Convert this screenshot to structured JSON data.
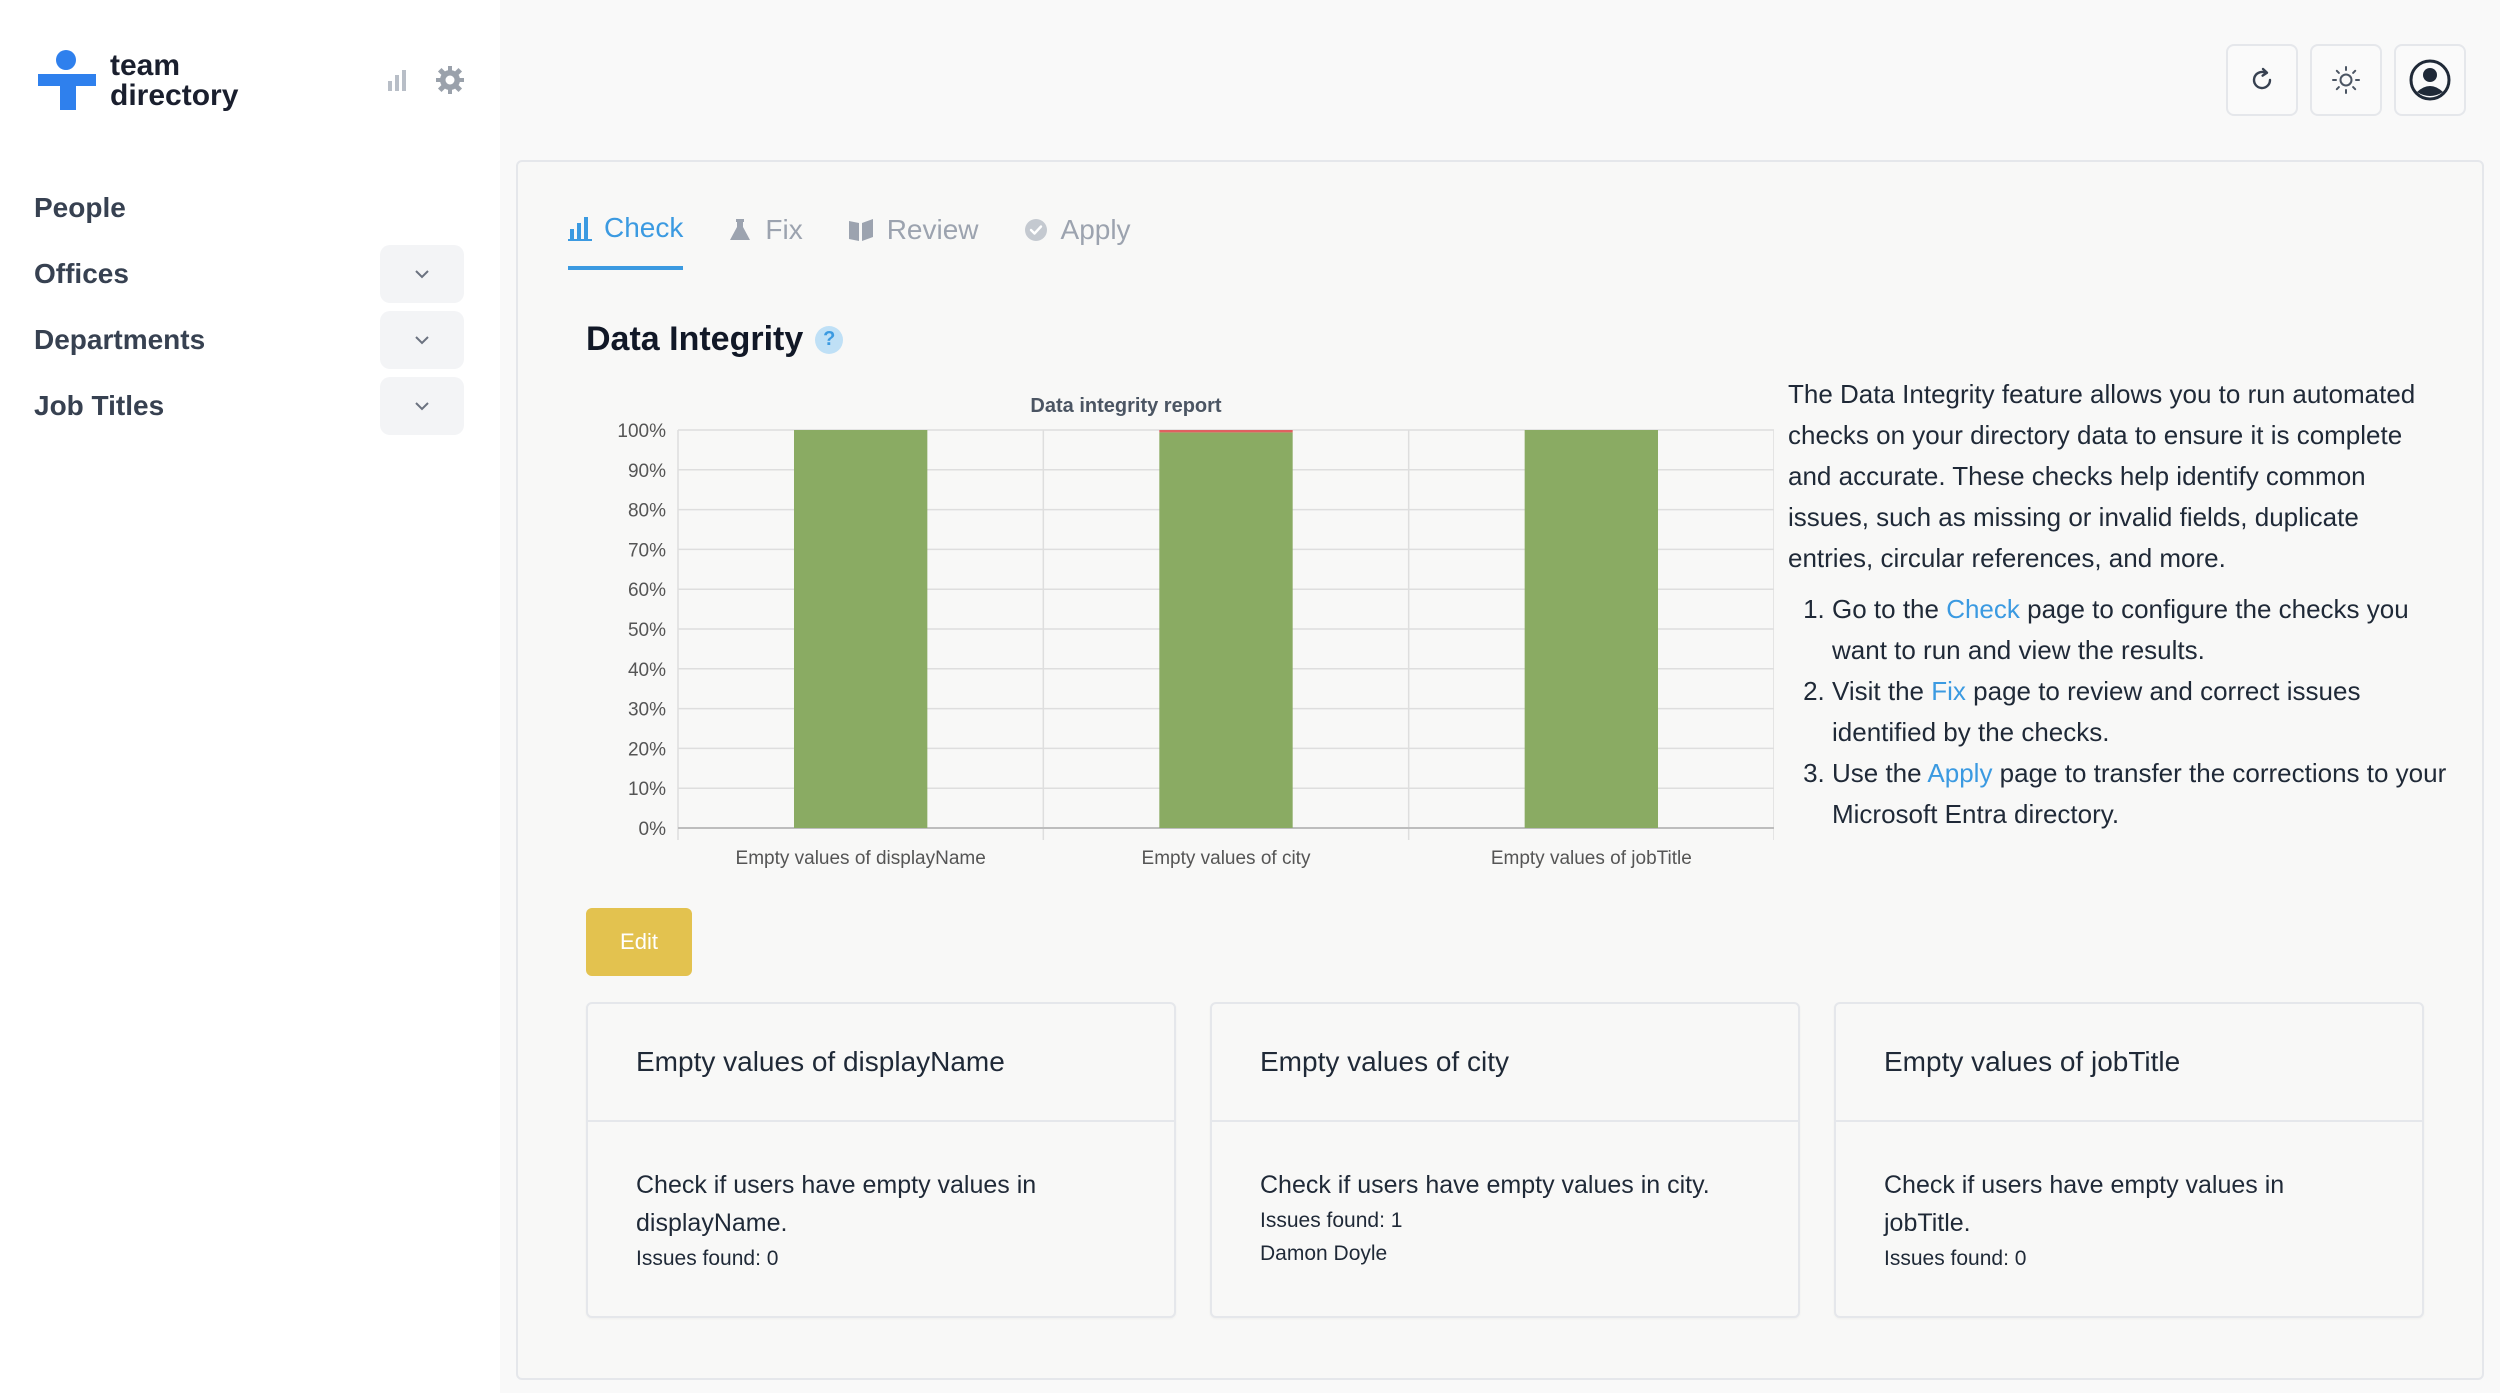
{
  "app": {
    "logo_line1": "team",
    "logo_line2": "directory"
  },
  "sidebar": {
    "items": [
      {
        "label": "People",
        "has_toggle": false
      },
      {
        "label": "Offices",
        "has_toggle": true
      },
      {
        "label": "Departments",
        "has_toggle": true
      },
      {
        "label": "Job Titles",
        "has_toggle": true
      }
    ]
  },
  "tabs": [
    {
      "label": "Check",
      "icon": "bar-chart-icon",
      "active": true
    },
    {
      "label": "Fix",
      "icon": "flask-icon",
      "active": false
    },
    {
      "label": "Review",
      "icon": "book-icon",
      "active": false
    },
    {
      "label": "Apply",
      "icon": "badge-check-icon",
      "active": false
    }
  ],
  "section": {
    "title": "Data Integrity",
    "help": "?"
  },
  "description": {
    "intro": "The Data Integrity feature allows you to run automated checks on your directory data to ensure it is complete and accurate. These checks help identify common issues, such as missing or invalid fields, duplicate entries, circular references, and more.",
    "step1_before": "Go to the ",
    "step1_link": "Check",
    "step1_after": " page to configure the checks you want to run and view the results.",
    "step2_before": "Visit the ",
    "step2_link": "Fix",
    "step2_after": " page to review and correct issues identified by the checks.",
    "step3_before": "Use the ",
    "step3_link": "Apply",
    "step3_after": " page to transfer the corrections to your Microsoft Entra directory."
  },
  "edit_label": "Edit",
  "chart_data": {
    "type": "bar",
    "stacked": true,
    "title": "Data integrity report",
    "categories": [
      "Empty values of displayName",
      "Empty values of city",
      "Empty values of jobTitle"
    ],
    "series": [
      {
        "values": [
          100,
          99.4,
          100
        ],
        "color": "#8aab63"
      },
      {
        "values": [
          0,
          0.6,
          0
        ],
        "color": "#e06060"
      }
    ],
    "y_ticks": [
      "0%",
      "10%",
      "20%",
      "30%",
      "40%",
      "50%",
      "60%",
      "70%",
      "80%",
      "90%",
      "100%"
    ],
    "ylim": [
      0,
      100
    ],
    "grid": true
  },
  "checks": [
    {
      "title": "Empty values of displayName",
      "description": "Check if users have empty values in displayName.",
      "issues": "Issues found: 0",
      "names": ""
    },
    {
      "title": "Empty values of city",
      "description": "Check if users have empty values in city.",
      "issues": "Issues found: 1",
      "names": "Damon Doyle"
    },
    {
      "title": "Empty values of jobTitle",
      "description": "Check if users have empty values in jobTitle.",
      "issues": "Issues found: 0",
      "names": ""
    }
  ],
  "colors": {
    "accent": "#3b9ae1",
    "edit_button": "#e3c24f",
    "bar_ok": "#8aab63",
    "bar_issue": "#e06060"
  }
}
